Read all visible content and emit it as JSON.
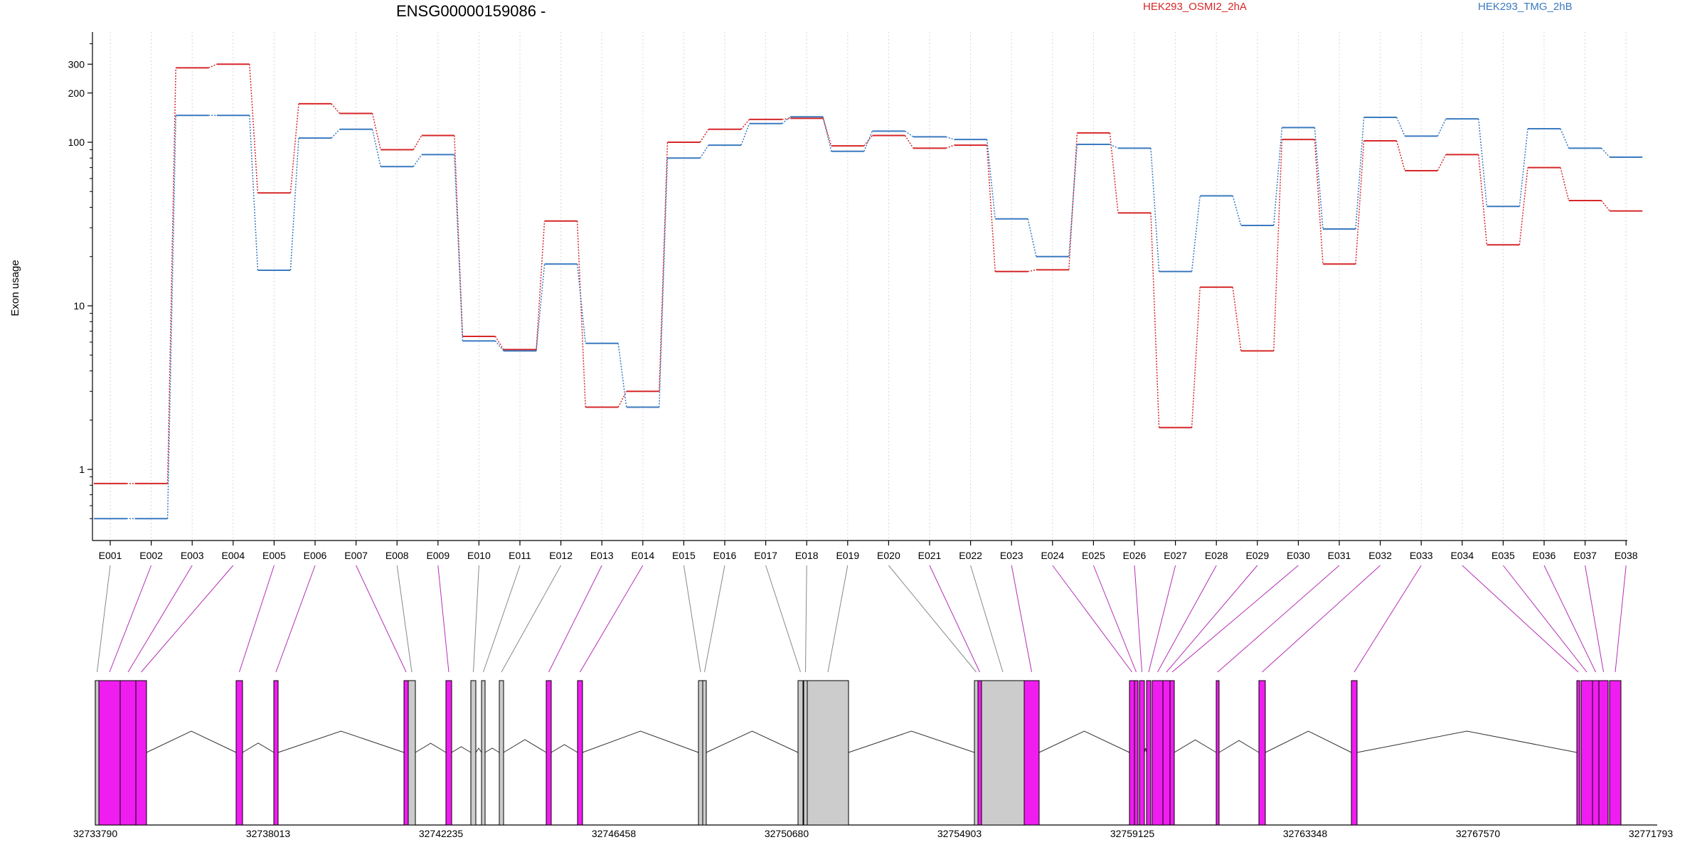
{
  "title": "ENSG00000159086 -",
  "chart_data": {
    "type": "line",
    "title": "ENSG00000159086 -",
    "ylabel": "Exon usage",
    "xlabel": "",
    "yscale": "log",
    "ylim": [
      0.45,
      420
    ],
    "yticks": [
      1,
      10,
      100,
      200,
      300
    ],
    "ytick_labels": [
      "1",
      "10",
      "100",
      "200",
      "300"
    ],
    "grid": "vertical dotted lines at each exon",
    "legend_position": "top-right",
    "categories": [
      "E001",
      "E002",
      "E003",
      "E004",
      "E005",
      "E006",
      "E007",
      "E008",
      "E009",
      "E010",
      "E011",
      "E012",
      "E013",
      "E014",
      "E015",
      "E016",
      "E017",
      "E018",
      "E019",
      "E020",
      "E021",
      "E022",
      "E023",
      "E024",
      "E025",
      "E026",
      "E027",
      "E028",
      "E029",
      "E030",
      "E031",
      "E032",
      "E033",
      "E034",
      "E035",
      "E036",
      "E037",
      "E038"
    ],
    "series": [
      {
        "name": "HEK293_OSMI2_2hA",
        "color": "#d62728",
        "values": [
          0.82,
          0.82,
          285,
          300,
          49,
          172,
          150,
          90,
          110,
          6.5,
          5.4,
          33,
          2.4,
          3.0,
          100,
          120,
          138,
          140,
          95,
          110,
          92,
          96,
          16.2,
          16.6,
          114,
          37,
          1.8,
          13,
          5.3,
          104,
          18,
          102,
          67,
          84,
          23.6,
          70,
          44,
          38
        ]
      },
      {
        "name": "HEK293_TMG_2hB",
        "color": "#3a7abf",
        "values": [
          0.5,
          0.5,
          146,
          146,
          16.5,
          106,
          120,
          71,
          84,
          6.1,
          5.3,
          18,
          5.9,
          2.4,
          80,
          96,
          130,
          143,
          88,
          117,
          108,
          104,
          34,
          20,
          97,
          92,
          16.2,
          47,
          31,
          123,
          29.5,
          142,
          109,
          139,
          40.5,
          121,
          92,
          81
        ]
      }
    ]
  },
  "legend": [
    {
      "label": "HEK293_OSMI2_2hA",
      "color": "#d62728"
    },
    {
      "label": "HEK293_TMG_2hB",
      "color": "#3a7abf"
    }
  ],
  "gene_model": {
    "coordinate_labels": [
      "32733790",
      "32738013",
      "32742235",
      "32746458",
      "32750680",
      "32754903",
      "32759125",
      "32763348",
      "32767570",
      "32771793"
    ],
    "exon_fill_colors": {
      "highlighted": "#f01df0",
      "normal": "#cccccc"
    },
    "exons": [
      {
        "id": "E001",
        "highlighted": false
      },
      {
        "id": "E002",
        "highlighted": true
      },
      {
        "id": "E003",
        "highlighted": true
      },
      {
        "id": "E004",
        "highlighted": true
      },
      {
        "id": "E005",
        "highlighted": true
      },
      {
        "id": "E006",
        "highlighted": true
      },
      {
        "id": "E007",
        "highlighted": true
      },
      {
        "id": "E008",
        "highlighted": false
      },
      {
        "id": "E009",
        "highlighted": true
      },
      {
        "id": "E010",
        "highlighted": false
      },
      {
        "id": "E011",
        "highlighted": false
      },
      {
        "id": "E012",
        "highlighted": false
      },
      {
        "id": "E013",
        "highlighted": true
      },
      {
        "id": "E014",
        "highlighted": true
      },
      {
        "id": "E015",
        "highlighted": false
      },
      {
        "id": "E016",
        "highlighted": false
      },
      {
        "id": "E017",
        "highlighted": false
      },
      {
        "id": "E018",
        "highlighted": false
      },
      {
        "id": "E019",
        "highlighted": false
      },
      {
        "id": "E020",
        "highlighted": false
      },
      {
        "id": "E021",
        "highlighted": true
      },
      {
        "id": "E022",
        "highlighted": false
      },
      {
        "id": "E023",
        "highlighted": true
      },
      {
        "id": "E024",
        "highlighted": true
      },
      {
        "id": "E025",
        "highlighted": true
      },
      {
        "id": "E026",
        "highlighted": true
      },
      {
        "id": "E027",
        "highlighted": true
      },
      {
        "id": "E028",
        "highlighted": true
      },
      {
        "id": "E029",
        "highlighted": true
      },
      {
        "id": "E030",
        "highlighted": true
      },
      {
        "id": "E031",
        "highlighted": true
      },
      {
        "id": "E032",
        "highlighted": true
      },
      {
        "id": "E033",
        "highlighted": true
      },
      {
        "id": "E034",
        "highlighted": true
      },
      {
        "id": "E035",
        "highlighted": true
      },
      {
        "id": "E036",
        "highlighted": true
      },
      {
        "id": "E037",
        "highlighted": true
      },
      {
        "id": "E038",
        "highlighted": true
      }
    ]
  }
}
